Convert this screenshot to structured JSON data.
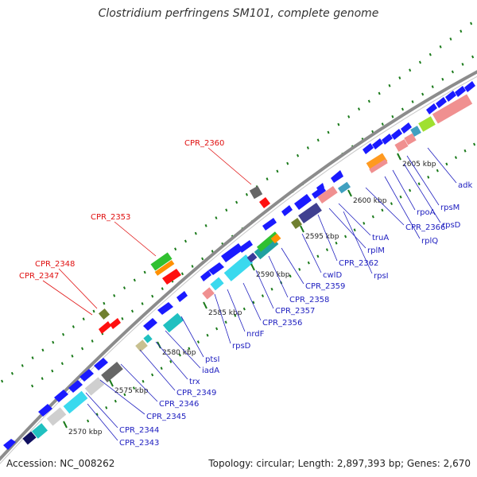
{
  "title": "Clostridium perfringens SM101, complete genome",
  "footer": {
    "accession": "Accession: NC_008262",
    "summary": "Topology: circular; Length: 2,897,393 bp; Genes: 2,670"
  },
  "colors": {
    "backbone": "#8c8c8c",
    "gene_blue": "#1a1aff",
    "label_blue": "#2020c0",
    "label_red": "#e01010",
    "tick_green": "#1a7a1a",
    "kbp_label": "#222222"
  },
  "kbp_ticks": [
    {
      "label": "2570 kbp"
    },
    {
      "label": "2575 kbp"
    },
    {
      "label": "2580 kbp"
    },
    {
      "label": "2585 kbp"
    },
    {
      "label": "2590 kbp"
    },
    {
      "label": "2595 kbp"
    },
    {
      "label": "2600 kbp"
    },
    {
      "label": "2605 kbp"
    }
  ],
  "gene_labels_blue": [
    "CPR_2343",
    "CPR_2344",
    "CPR_2345",
    "CPR_2346",
    "CPR_2349",
    "trx",
    "iadA",
    "ptsI",
    "rpsD",
    "nrdF",
    "CPR_2356",
    "CPR_2357",
    "CPR_2358",
    "CPR_2359",
    "cwlD",
    "rpsI",
    "CPR_2362",
    "rplM",
    "truA",
    "CPR_2366",
    "rplQ",
    "rpoA",
    "rpsD",
    "rpsM",
    "adk"
  ],
  "gene_labels_red": [
    "CPR_2347",
    "CPR_2348",
    "CPR_2353",
    "CPR_2360"
  ]
}
